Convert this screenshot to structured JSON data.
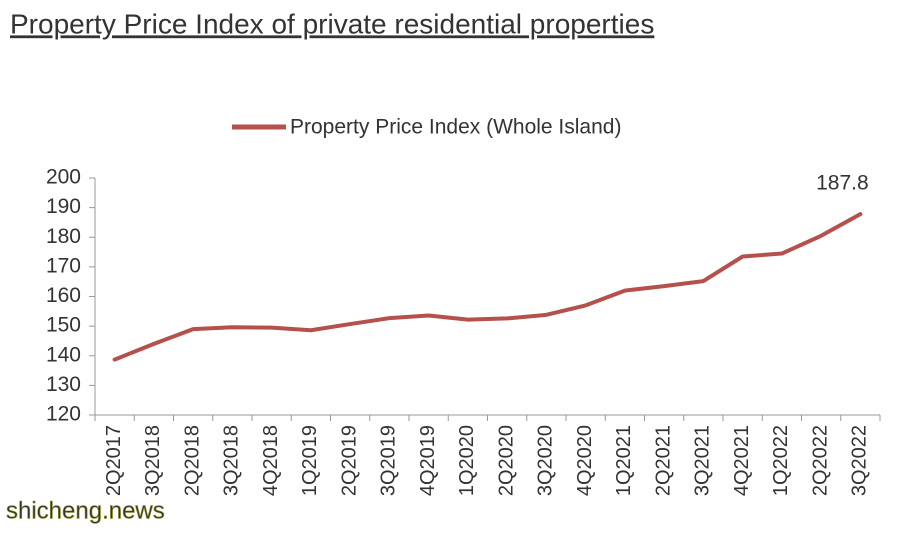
{
  "chart_data": {
    "type": "line",
    "title": "Property Price Index of private residential properties",
    "categories": [
      "2Q2017",
      "3Q2018",
      "2Q2018",
      "3Q2018",
      "4Q2018",
      "1Q2019",
      "2Q2019",
      "3Q2019",
      "4Q2019",
      "1Q2020",
      "2Q2020",
      "3Q2020",
      "4Q2020",
      "1Q2021",
      "2Q2021",
      "3Q2021",
      "4Q2021",
      "1Q2022",
      "2Q2022",
      "3Q2022"
    ],
    "series": [
      {
        "name": "Property Price Index (Whole Island)",
        "color": "#b5504c",
        "values": [
          138.7,
          144,
          149,
          149.6,
          149.5,
          148.6,
          150.7,
          152.7,
          153.6,
          152.2,
          152.6,
          153.8,
          157,
          162,
          163.5,
          165.2,
          173.5,
          174.5,
          180.5,
          187.8
        ],
        "value_labels": [
          null,
          null,
          null,
          null,
          null,
          null,
          null,
          null,
          null,
          null,
          null,
          null,
          null,
          null,
          null,
          null,
          null,
          null,
          null,
          "187.8"
        ]
      }
    ],
    "ylim": [
      120,
      200
    ],
    "yticks": [
      120,
      130,
      140,
      150,
      160,
      170,
      180,
      190,
      200
    ],
    "legend": "top",
    "watermark": "shicheng.news"
  }
}
